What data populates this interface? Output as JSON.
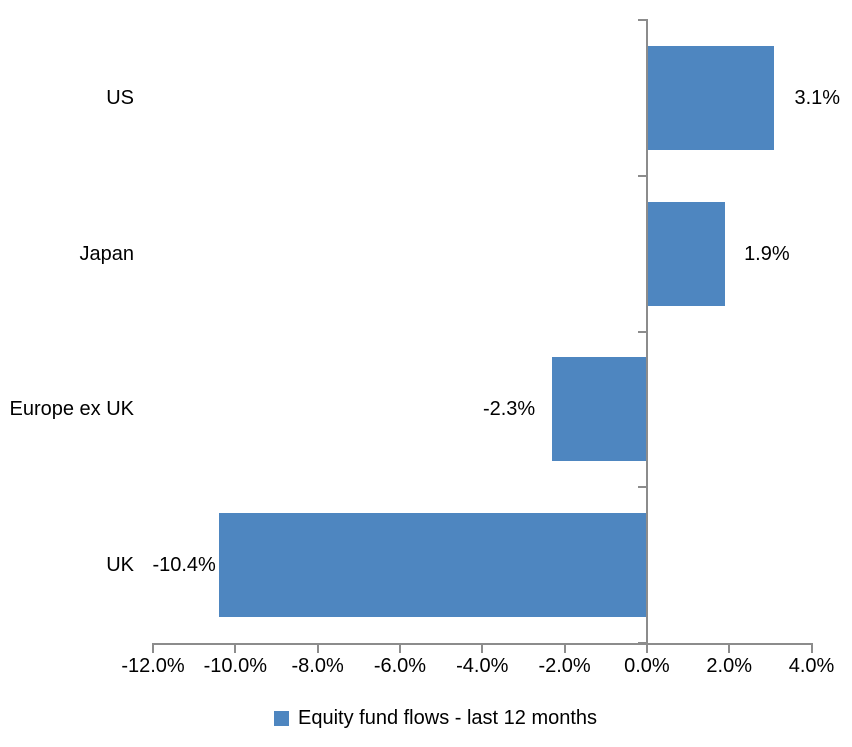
{
  "chart_data": {
    "type": "bar",
    "orientation": "horizontal",
    "title": "",
    "categories": [
      "US",
      "Japan",
      "Europe ex UK",
      "UK"
    ],
    "values": [
      3.1,
      1.9,
      -2.3,
      -10.4
    ],
    "data_labels": [
      "3.1%",
      "1.9%",
      "-2.3%",
      "-10.4%"
    ],
    "series_name": "Equity fund flows - last 12 months",
    "x_ticks": [
      -12,
      -10,
      -8,
      -6,
      -4,
      -2,
      0,
      2,
      4
    ],
    "x_tick_labels": [
      "-12.0%",
      "-10.0%",
      "-8.0%",
      "-6.0%",
      "-4.0%",
      "-2.0%",
      "0.0%",
      "2.0%",
      "4.0%"
    ],
    "xlim": [
      -12,
      4
    ],
    "grid": false,
    "legend_position": "bottom-center",
    "colors": {
      "bar": "#4E86C0",
      "axis": "#8C8C8C",
      "text": "#000000",
      "background": "#FFFFFF"
    }
  },
  "legend": {
    "items": [
      {
        "label": "Equity fund flows - last 12 months",
        "swatch_color": "#4E86C0"
      }
    ]
  }
}
